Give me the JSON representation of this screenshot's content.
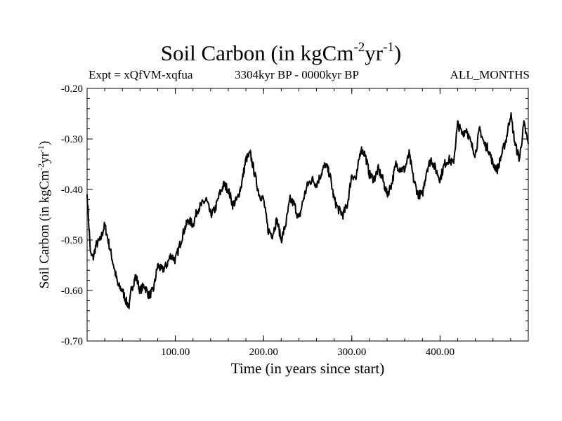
{
  "header": {
    "title": "Soil Carbon (in kgCm",
    "title_exp1": "-2",
    "title_mid": "yr",
    "title_exp2": "-1",
    "title_end": ")",
    "experiment": "Expt = xQfVM-xqfua",
    "period": "3304kyr BP - 0000kyr BP",
    "months": "ALL_MONTHS"
  },
  "chart_data": {
    "type": "line",
    "title": "Soil Carbon (in kgCm-2yr-1)",
    "xlabel": "Time (in years since start)",
    "ylabel": "Soil Carbon (in kgCm-2yr-1)",
    "ylabel_parts": {
      "a": "Soil Carbon (in kgCm",
      "e1": "-2",
      "b": "yr",
      "e2": "-1",
      "c": ")"
    },
    "xlim": [
      0,
      500
    ],
    "ylim": [
      -0.7,
      -0.2
    ],
    "xticks": [
      100,
      200,
      300,
      400
    ],
    "xtick_labels": [
      "100.00",
      "200.00",
      "300.00",
      "400.00"
    ],
    "yticks": [
      -0.2,
      -0.3,
      -0.4,
      -0.5,
      -0.6,
      -0.7
    ],
    "ytick_labels": [
      "-0.20",
      "-0.30",
      "-0.40",
      "-0.50",
      "-0.60",
      "-0.70"
    ],
    "line_color": "#000000",
    "series": [
      {
        "name": "Soil Carbon",
        "x": [
          0,
          2,
          4,
          7,
          10,
          15,
          20,
          25,
          30,
          35,
          40,
          45,
          48,
          50,
          55,
          60,
          65,
          70,
          75,
          80,
          85,
          90,
          95,
          100,
          105,
          110,
          115,
          120,
          125,
          130,
          135,
          140,
          145,
          150,
          155,
          160,
          165,
          170,
          175,
          180,
          185,
          190,
          195,
          200,
          205,
          210,
          215,
          220,
          225,
          230,
          235,
          240,
          245,
          250,
          255,
          260,
          265,
          270,
          275,
          280,
          285,
          290,
          295,
          300,
          305,
          310,
          315,
          320,
          325,
          330,
          335,
          340,
          345,
          350,
          355,
          360,
          365,
          370,
          375,
          380,
          385,
          390,
          395,
          400,
          405,
          410,
          415,
          420,
          425,
          430,
          435,
          440,
          445,
          450,
          455,
          460,
          465,
          470,
          475,
          480,
          485,
          490,
          495,
          500
        ],
        "y": [
          -0.41,
          -0.47,
          -0.53,
          -0.535,
          -0.51,
          -0.5,
          -0.47,
          -0.51,
          -0.55,
          -0.59,
          -0.6,
          -0.625,
          -0.63,
          -0.6,
          -0.57,
          -0.6,
          -0.59,
          -0.61,
          -0.6,
          -0.55,
          -0.56,
          -0.55,
          -0.53,
          -0.54,
          -0.51,
          -0.48,
          -0.46,
          -0.47,
          -0.44,
          -0.43,
          -0.42,
          -0.45,
          -0.44,
          -0.41,
          -0.39,
          -0.4,
          -0.43,
          -0.42,
          -0.39,
          -0.34,
          -0.33,
          -0.37,
          -0.41,
          -0.42,
          -0.48,
          -0.49,
          -0.46,
          -0.5,
          -0.47,
          -0.42,
          -0.43,
          -0.46,
          -0.42,
          -0.39,
          -0.38,
          -0.39,
          -0.37,
          -0.35,
          -0.37,
          -0.42,
          -0.44,
          -0.45,
          -0.43,
          -0.37,
          -0.38,
          -0.32,
          -0.33,
          -0.37,
          -0.38,
          -0.36,
          -0.38,
          -0.41,
          -0.39,
          -0.35,
          -0.36,
          -0.36,
          -0.33,
          -0.38,
          -0.41,
          -0.41,
          -0.36,
          -0.34,
          -0.36,
          -0.38,
          -0.35,
          -0.34,
          -0.35,
          -0.27,
          -0.29,
          -0.28,
          -0.31,
          -0.33,
          -0.28,
          -0.31,
          -0.32,
          -0.35,
          -0.36,
          -0.33,
          -0.3,
          -0.25,
          -0.31,
          -0.34,
          -0.27,
          -0.31
        ]
      }
    ]
  }
}
